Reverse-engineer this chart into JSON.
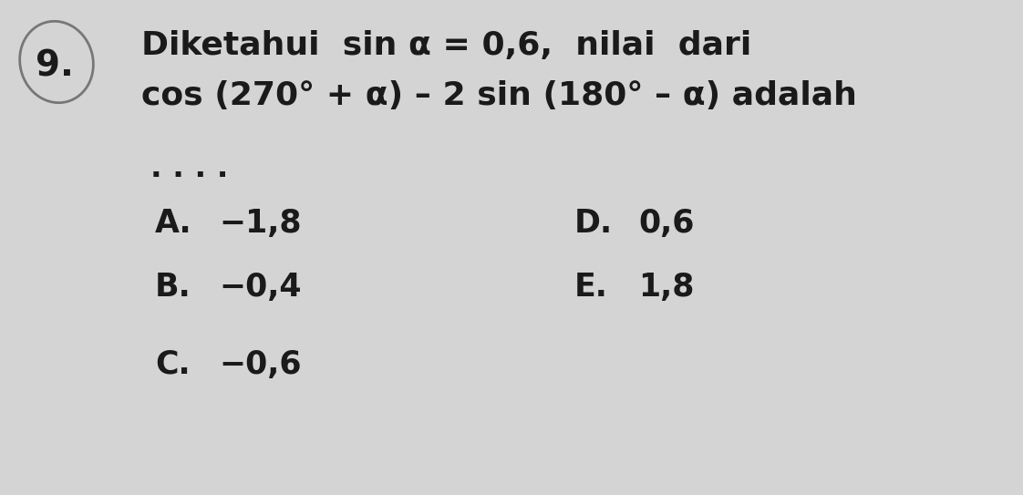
{
  "background_color": "#d4d4d4",
  "number_label": "9.",
  "line1": "Diketahui  sin α = 0,6,  nilai  dari",
  "line2": "cos (270° + α) – 2 sin (180° – α) adalah",
  "dots": ". . . .",
  "options_col0": [
    {
      "label": "A.",
      "value": "−1,8"
    },
    {
      "label": "B.",
      "value": "−0,4"
    },
    {
      "label": "C.",
      "value": "−0,6"
    }
  ],
  "options_col1": [
    {
      "label": "D.",
      "value": "0,6"
    },
    {
      "label": "E.",
      "value": "1,8"
    }
  ],
  "text_color": "#1a1a1a",
  "circle_color": "#777777",
  "font_size_main": 26,
  "font_size_options": 25,
  "font_size_number": 28
}
